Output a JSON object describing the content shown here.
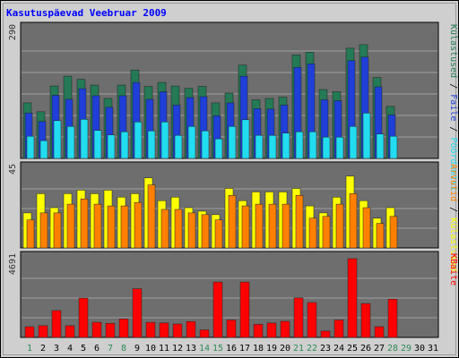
{
  "title": "Kasutuspäevad Veebruar 2009",
  "colors": {
    "title": "#0000ff",
    "frame_bg": "#cfcfcf",
    "plot_bg": "#6e6e6e",
    "gridline": "#a0a0a0",
    "visits": "#237a54",
    "pages": "#1f3fd8",
    "files": "#22dcf0",
    "hits": "#ffff00",
    "downloads": "#ff8000",
    "kbytes": "#ff0000",
    "weekend_day": "#2e8b57",
    "weekday_day": "#000000"
  },
  "chart_data": [
    {
      "type": "bar",
      "panel": "top",
      "ymax_label": "290",
      "ymax": 290,
      "categories": [
        "1",
        "2",
        "3",
        "4",
        "5",
        "6",
        "7",
        "8",
        "9",
        "10",
        "11",
        "12",
        "13",
        "14",
        "15",
        "16",
        "17",
        "18",
        "19",
        "20",
        "21",
        "22",
        "23",
        "24",
        "25",
        "26",
        "27",
        "28",
        "29",
        "30",
        "31"
      ],
      "weekend_days": [
        "1",
        "7",
        "8",
        "14",
        "15",
        "21",
        "22",
        "28",
        "29"
      ],
      "legend": [
        {
          "text": "Külastused",
          "color": "#237a54"
        },
        {
          "text": " / ",
          "color": "#000000"
        },
        {
          "text": "Faile",
          "color": "#1f3fd8"
        },
        {
          "text": " / ",
          "color": "#000000"
        },
        {
          "text": "Pöördumisi",
          "color": "#22dcf0"
        }
      ],
      "series": [
        {
          "key": "visits",
          "values": [
            125,
            105,
            163,
            185,
            178,
            165,
            135,
            165,
            199,
            162,
            171,
            163,
            158,
            162,
            125,
            147,
            210,
            132,
            135,
            138,
            233,
            239,
            155,
            150,
            248,
            256,
            182,
            117,
            null,
            null,
            null
          ]
        },
        {
          "key": "pages",
          "values": [
            102,
            83,
            142,
            133,
            157,
            141,
            115,
            141,
            171,
            133,
            150,
            120,
            137,
            139,
            96,
            125,
            185,
            112,
            111,
            120,
            205,
            213,
            132,
            130,
            220,
            228,
            161,
            98,
            null,
            null,
            null
          ]
        },
        {
          "key": "files",
          "values": [
            50,
            40,
            85,
            72,
            88,
            63,
            53,
            60,
            82,
            62,
            82,
            52,
            72,
            62,
            44,
            72,
            87,
            52,
            52,
            57,
            60,
            60,
            48,
            48,
            72,
            102,
            55,
            50,
            null,
            null,
            null
          ]
        }
      ]
    },
    {
      "type": "bar",
      "panel": "middle",
      "ymax_label": "45",
      "ymax": 45,
      "legend": [
        {
          "text": "Arvutid",
          "color": "#ff8000"
        },
        {
          "text": " / ",
          "color": "#000000"
        },
        {
          "text": "Külastused",
          "color": "#ffff00"
        }
      ],
      "series": [
        {
          "key": "hits",
          "values": [
            20,
            31,
            23,
            31,
            33,
            31,
            33,
            29,
            31,
            40,
            27,
            29,
            23,
            21,
            19,
            34,
            27,
            32,
            32,
            32,
            34,
            24,
            20,
            29,
            41,
            27,
            17,
            23,
            null,
            null,
            null
          ]
        },
        {
          "key": "downloads",
          "values": [
            16,
            20,
            20,
            25,
            28,
            25,
            24,
            24,
            26,
            36,
            22,
            22,
            20,
            19,
            16,
            30,
            24,
            25,
            25,
            25,
            30,
            17,
            18,
            25,
            31,
            23,
            14,
            18,
            null,
            null,
            null
          ]
        }
      ]
    },
    {
      "type": "bar",
      "panel": "bottom",
      "ymax_label": "4691",
      "ymax": 4691,
      "legend": [
        {
          "text": "KBaite",
          "color": "#ff0000"
        }
      ],
      "series": [
        {
          "key": "kbytes",
          "values": [
            640,
            700,
            1600,
            700,
            2340,
            904,
            840,
            1100,
            2900,
            900,
            860,
            800,
            950,
            450,
            3300,
            1040,
            3300,
            780,
            860,
            962,
            2350,
            2080,
            380,
            1040,
            4691,
            2020,
            640,
            2280,
            null,
            null,
            null
          ]
        }
      ]
    }
  ]
}
